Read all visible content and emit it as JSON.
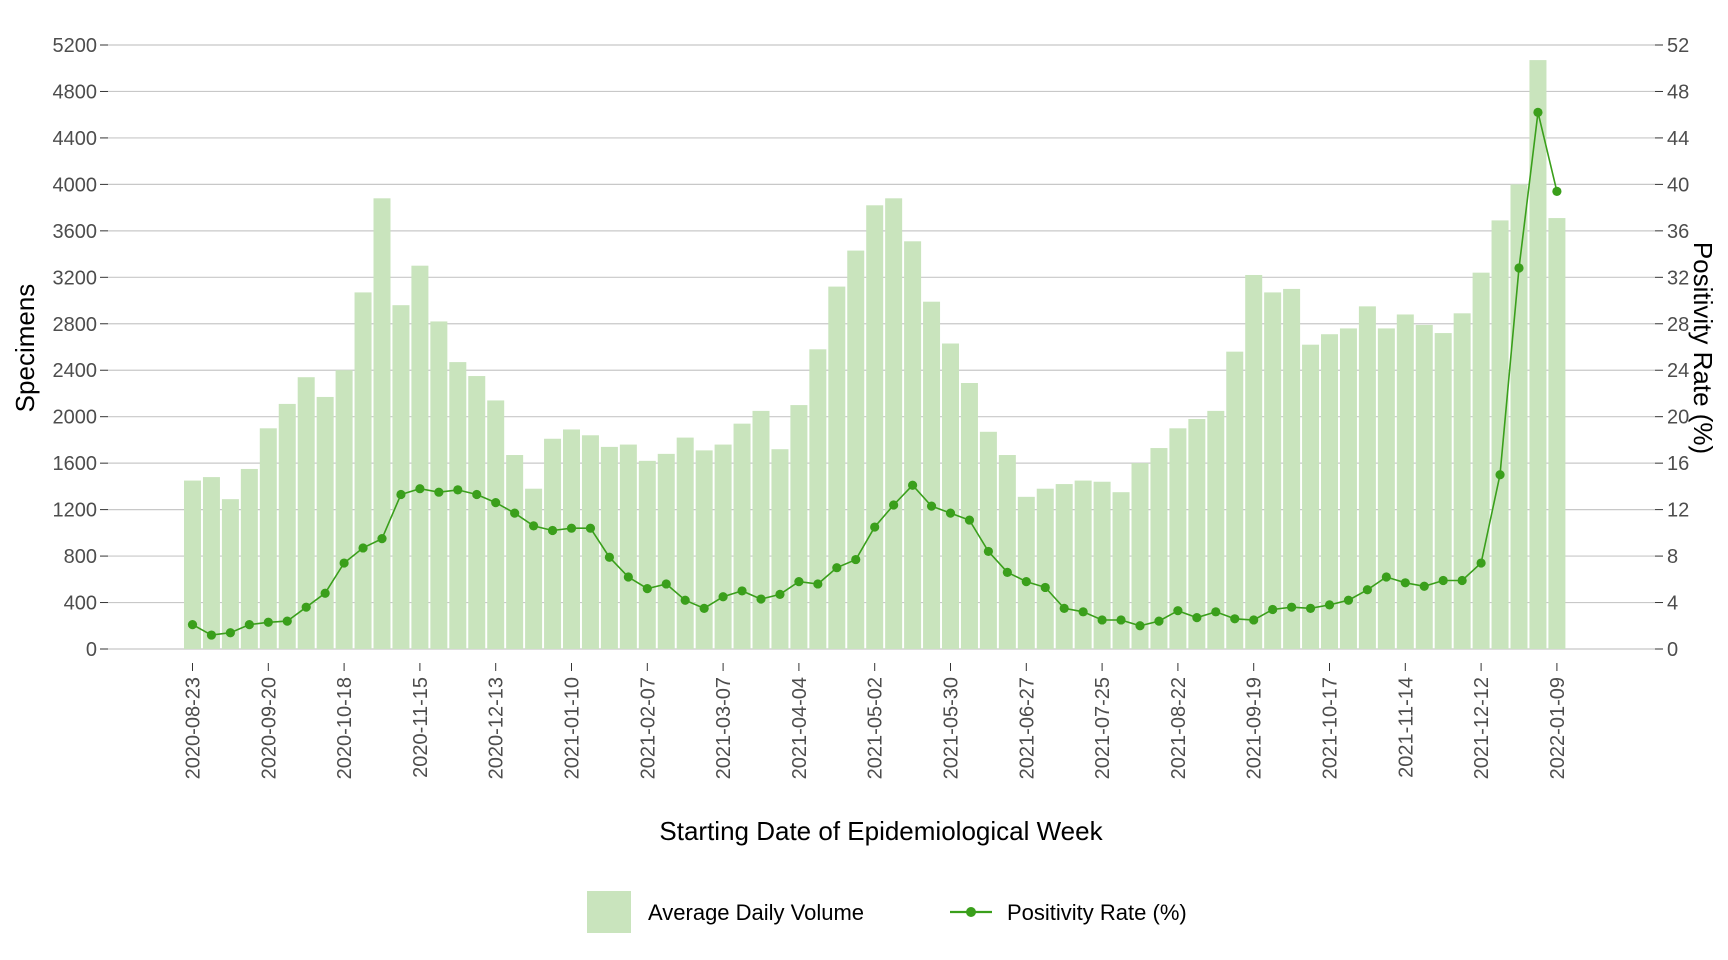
{
  "chart_data": {
    "type": "bar",
    "xlabel": "Starting Date of Epidemiological Week",
    "ylabel": "Specimens",
    "y2label": "Positivity Rate (%)",
    "ylim": [
      0,
      5200
    ],
    "y2lim": [
      0,
      52
    ],
    "yticks": [
      "0",
      "400",
      "800",
      "1200",
      "1600",
      "2000",
      "2400",
      "2800",
      "3200",
      "3600",
      "4000",
      "4400",
      "4800",
      "5200"
    ],
    "y2ticks": [
      "0",
      "4",
      "8",
      "12",
      "16",
      "20",
      "24",
      "28",
      "32",
      "36",
      "40",
      "44",
      "48",
      "52"
    ],
    "grid": true,
    "legend_position": "bottom",
    "x_first_week": "2020-08-23",
    "x_tick_labels": [
      "2020-08-23",
      "2020-09-20",
      "2020-10-18",
      "2020-11-15",
      "2020-12-13",
      "2021-01-10",
      "2021-02-07",
      "2021-03-07",
      "2021-04-04",
      "2021-05-02",
      "2021-05-30",
      "2021-06-27",
      "2021-07-25",
      "2021-08-22",
      "2021-09-19",
      "2021-10-17",
      "2021-11-14",
      "2021-12-12",
      "2022-01-09"
    ],
    "colors": {
      "bar": "#c9e4bd",
      "line": "#3a9f1b",
      "grid": "#c8c8c8"
    },
    "series": [
      {
        "name": "Average Daily Volume",
        "type": "bar",
        "axis": "left",
        "values": [
          1450,
          1480,
          1290,
          1550,
          1900,
          2110,
          2340,
          2170,
          2400,
          3070,
          3880,
          2960,
          3300,
          2820,
          2470,
          2350,
          2140,
          1670,
          1380,
          1810,
          1890,
          1840,
          1740,
          1760,
          1620,
          1680,
          1820,
          1710,
          1760,
          1940,
          2050,
          1720,
          2100,
          2580,
          3120,
          3430,
          3820,
          3880,
          3510,
          2990,
          2630,
          2290,
          1870,
          1670,
          1310,
          1380,
          1420,
          1450,
          1440,
          1350,
          1600,
          1730,
          1900,
          1980,
          2050,
          2560,
          3220,
          3070,
          3100,
          2620,
          2710,
          2760,
          2950,
          2760,
          2880,
          2790,
          2720,
          2890,
          3240,
          3690,
          4000,
          5070,
          3710
        ]
      },
      {
        "name": "Positivity Rate (%)",
        "type": "line",
        "axis": "right",
        "values": [
          2.1,
          1.2,
          1.4,
          2.1,
          2.3,
          2.4,
          3.6,
          4.8,
          7.4,
          8.7,
          9.5,
          13.3,
          13.8,
          13.5,
          13.7,
          13.3,
          12.6,
          11.7,
          10.6,
          10.2,
          10.4,
          10.4,
          7.9,
          6.2,
          5.2,
          5.6,
          4.2,
          3.5,
          4.5,
          5.0,
          4.3,
          4.7,
          5.8,
          5.6,
          7.0,
          7.7,
          10.5,
          12.4,
          14.1,
          12.3,
          11.7,
          11.1,
          8.4,
          6.6,
          5.8,
          5.3,
          3.5,
          3.2,
          2.5,
          2.5,
          2.0,
          2.4,
          3.3,
          2.7,
          3.2,
          2.6,
          2.5,
          3.4,
          3.6,
          3.5,
          3.8,
          4.2,
          5.1,
          6.2,
          5.7,
          5.4,
          5.9,
          5.9,
          7.4,
          15.0,
          32.8,
          46.2,
          39.4
        ]
      }
    ]
  }
}
